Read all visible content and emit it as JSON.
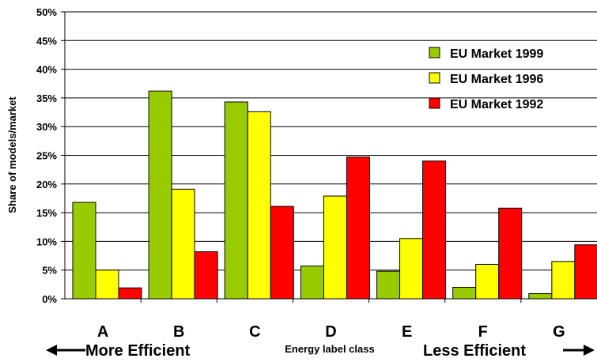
{
  "chart_data": {
    "type": "bar",
    "title": "",
    "xlabel": "Energy label class",
    "ylabel": "Share of models/market",
    "categories": [
      "A",
      "B",
      "C",
      "D",
      "E",
      "F",
      "G"
    ],
    "series": [
      {
        "name": "EU Market 1999",
        "color": "#99cc00",
        "values": [
          16.8,
          36.2,
          34.3,
          5.7,
          4.8,
          2.0,
          0.9
        ]
      },
      {
        "name": "EU Market 1996",
        "color": "#ffff00",
        "values": [
          5.0,
          19.1,
          32.6,
          17.9,
          10.5,
          6.0,
          6.5
        ]
      },
      {
        "name": "EU Market 1992",
        "color": "#ff0000",
        "values": [
          1.9,
          8.2,
          16.1,
          24.7,
          24.0,
          15.8,
          9.4
        ]
      }
    ],
    "ylim": [
      0,
      50
    ],
    "yticks": [
      "0%",
      "5%",
      "10%",
      "15%",
      "20%",
      "25%",
      "30%",
      "35%",
      "40%",
      "45%",
      "50%"
    ],
    "grid": "horizontal",
    "legend_position": "top-right",
    "annotations": {
      "left": "More Efficient",
      "right": "Less Efficient"
    }
  }
}
